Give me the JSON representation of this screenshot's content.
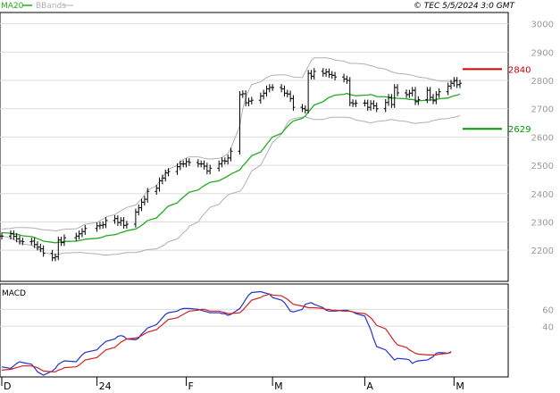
{
  "header": {
    "legend_ma": "MA20",
    "legend_bands": "BBands",
    "copyright": "© TEC 5/5/2024 3:0 GMT"
  },
  "colors": {
    "price_bar": "#000000",
    "ma20": "#22aa22",
    "bbands": "#b0b0b0",
    "resistance": "#cc0000",
    "support": "#009900",
    "macd": "#2233cc",
    "signal": "#cc2222",
    "grid": "#dddddd"
  },
  "chart_data": [
    {
      "type": "ohlc",
      "x": [
        "2023-12-01",
        "2023-12-04",
        "2023-12-05",
        "2023-12-06",
        "2023-12-07",
        "2023-12-08",
        "2023-12-11",
        "2023-12-12",
        "2023-12-13",
        "2023-12-14",
        "2023-12-15",
        "2023-12-18",
        "2023-12-19",
        "2023-12-20",
        "2023-12-21",
        "2023-12-22",
        "2023-12-26",
        "2023-12-27",
        "2023-12-28",
        "2023-12-29",
        "2024-01-02",
        "2024-01-03",
        "2024-01-04",
        "2024-01-05",
        "2024-01-08",
        "2024-01-09",
        "2024-01-10",
        "2024-01-11",
        "2024-01-12",
        "2024-01-15",
        "2024-01-16",
        "2024-01-17",
        "2024-01-18",
        "2024-01-19",
        "2024-01-22",
        "2024-01-23",
        "2024-01-24",
        "2024-01-25",
        "2024-01-26",
        "2024-01-29",
        "2024-01-30",
        "2024-01-31",
        "2024-02-01",
        "2024-02-02",
        "2024-02-05",
        "2024-02-06",
        "2024-02-07",
        "2024-02-08",
        "2024-02-09",
        "2024-02-12",
        "2024-02-13",
        "2024-02-14",
        "2024-02-15",
        "2024-02-16",
        "2024-02-19",
        "2024-02-20",
        "2024-02-21",
        "2024-02-22",
        "2024-02-23",
        "2024-02-26",
        "2024-02-27",
        "2024-02-28",
        "2024-02-29",
        "2024-03-01",
        "2024-03-04",
        "2024-03-05",
        "2024-03-06",
        "2024-03-07",
        "2024-03-08",
        "2024-03-11",
        "2024-03-12",
        "2024-03-13",
        "2024-03-14",
        "2024-03-15",
        "2024-03-18",
        "2024-03-19",
        "2024-03-20",
        "2024-03-21",
        "2024-03-22",
        "2024-03-25",
        "2024-03-26",
        "2024-03-27",
        "2024-03-28",
        "2024-03-29",
        "2024-04-01",
        "2024-04-02",
        "2024-04-03",
        "2024-04-04",
        "2024-04-05",
        "2024-04-08",
        "2024-04-09",
        "2024-04-10",
        "2024-04-11",
        "2024-04-12",
        "2024-04-15",
        "2024-04-16",
        "2024-04-17",
        "2024-04-18",
        "2024-04-19",
        "2024-04-22",
        "2024-04-23",
        "2024-04-24",
        "2024-04-25",
        "2024-04-26",
        "2024-04-29",
        "2024-04-30",
        "2024-05-01",
        "2024-05-02",
        "2024-05-03"
      ],
      "close": [
        2250,
        2258,
        2249,
        2240,
        2232,
        2230,
        2232,
        2220,
        2211,
        2205,
        2189,
        2173,
        2177,
        2236,
        2227,
        2244,
        2250,
        2258,
        2266,
        2277,
        2286,
        2288,
        2290,
        2305,
        2312,
        2298,
        2305,
        2288,
        2292,
        2335,
        2350,
        2370,
        2380,
        2408,
        2419,
        2445,
        2455,
        2473,
        2478,
        2495,
        2505,
        2505,
        2513,
        2510,
        2505,
        2505,
        2497,
        2480,
        2490,
        2505,
        2516,
        2515,
        2526,
        2550,
        2750,
        2753,
        2721,
        2727,
        2730,
        2745,
        2755,
        2770,
        2775,
        2775,
        2770,
        2755,
        2752,
        2736,
        2705,
        2700,
        2695,
        2825,
        2815,
        2832,
        2825,
        2830,
        2821,
        2818,
        2812,
        2805,
        2800,
        2721,
        2718,
        2720,
        2720,
        2705,
        2718,
        2710,
        2700,
        2722,
        2740,
        2715,
        2775,
        2756,
        2750,
        2755,
        2765,
        2725,
        2732,
        2765,
        2740,
        2728,
        2750,
        2760,
        2780,
        2790,
        2800,
        2785,
        2790
      ],
      "ylim": [
        2090,
        3040
      ],
      "y_ticks": [
        "3000",
        "2900",
        "2800",
        "2700",
        "2600",
        "2500",
        "2400",
        "2300",
        "2200"
      ],
      "x_ticks": [
        "D",
        "24",
        "F",
        "M",
        "A",
        "M"
      ],
      "series": [
        {
          "name": "MA20",
          "values": [
            2262,
            2260,
            2258,
            2256,
            2254,
            2251,
            2248,
            2245,
            2241,
            2237,
            2232,
            2228,
            2226,
            2228,
            2229,
            2231,
            2232,
            2234,
            2236,
            2239,
            2242,
            2244,
            2247,
            2251,
            2255,
            2258,
            2262,
            2265,
            2269,
            2275,
            2281,
            2288,
            2296,
            2305,
            2314,
            2325,
            2335,
            2346,
            2356,
            2367,
            2378,
            2387,
            2396,
            2405,
            2413,
            2421,
            2428,
            2434,
            2440,
            2445,
            2451,
            2456,
            2462,
            2469,
            2484,
            2498,
            2509,
            2522,
            2534,
            2547,
            2560,
            2574,
            2587,
            2600,
            2613,
            2625,
            2637,
            2648,
            2657,
            2666,
            2674,
            2688,
            2700,
            2713,
            2725,
            2733,
            2740,
            2744,
            2748,
            2751,
            2754,
            2750,
            2748,
            2746,
            2748,
            2748,
            2750,
            2747,
            2743,
            2742,
            2740,
            2737,
            2738,
            2737,
            2735,
            2733,
            2733,
            2730,
            2728,
            2730,
            2731,
            2731,
            2733,
            2735,
            2738,
            2742,
            2746,
            2748,
            2752
          ]
        },
        {
          "name": "BB-upper",
          "values": [
            2275,
            2277,
            2279,
            2280,
            2280,
            2280,
            2279,
            2278,
            2276,
            2274,
            2272,
            2270,
            2268,
            2270,
            2272,
            2274,
            2276,
            2280,
            2286,
            2292,
            2298,
            2304,
            2310,
            2318,
            2326,
            2333,
            2339,
            2345,
            2351,
            2360,
            2370,
            2382,
            2396,
            2412,
            2428,
            2443,
            2458,
            2472,
            2486,
            2500,
            2512,
            2520,
            2526,
            2530,
            2530,
            2528,
            2525,
            2523,
            2522,
            2525,
            2528,
            2534,
            2542,
            2560,
            2640,
            2700,
            2740,
            2765,
            2785,
            2795,
            2803,
            2810,
            2815,
            2818,
            2820,
            2820,
            2818,
            2815,
            2812,
            2810,
            2830,
            2850,
            2870,
            2880,
            2880,
            2880,
            2878,
            2876,
            2872,
            2868,
            2864,
            2860,
            2860,
            2860,
            2858,
            2855,
            2852,
            2850,
            2845,
            2840,
            2835,
            2830,
            2828,
            2825,
            2822,
            2820,
            2818,
            2815,
            2812,
            2808,
            2805,
            2803,
            2800,
            2798,
            2797,
            2796,
            2796,
            2798,
            2800
          ]
        },
        {
          "name": "BB-lower",
          "values": [
            2250,
            2244,
            2238,
            2232,
            2228,
            2222,
            2218,
            2212,
            2206,
            2200,
            2192,
            2186,
            2184,
            2186,
            2188,
            2190,
            2192,
            2192,
            2192,
            2190,
            2187,
            2185,
            2183,
            2183,
            2185,
            2186,
            2188,
            2190,
            2192,
            2192,
            2194,
            2196,
            2200,
            2202,
            2205,
            2210,
            2215,
            2222,
            2230,
            2240,
            2250,
            2262,
            2270,
            2285,
            2300,
            2315,
            2328,
            2340,
            2352,
            2362,
            2375,
            2385,
            2395,
            2400,
            2408,
            2420,
            2440,
            2460,
            2480,
            2500,
            2520,
            2540,
            2560,
            2580,
            2610,
            2630,
            2650,
            2660,
            2665,
            2670,
            2672,
            2668,
            2665,
            2662,
            2662,
            2665,
            2668,
            2670,
            2670,
            2670,
            2670,
            2668,
            2665,
            2660,
            2655,
            2652,
            2650,
            2652,
            2655,
            2658,
            2660,
            2662,
            2660,
            2658,
            2655,
            2652,
            2650,
            2648,
            2650,
            2652,
            2655,
            2658,
            2660,
            2663,
            2665,
            2668,
            2670,
            2672,
            2676
          ]
        }
      ],
      "levels": [
        {
          "label": "2840",
          "value": 2840,
          "color": "#cc0000"
        },
        {
          "label": "2629",
          "value": 2629,
          "color": "#009900"
        }
      ]
    },
    {
      "type": "line",
      "title": "MACD",
      "ylim": [
        -20,
        90
      ],
      "y_ticks": [
        "60",
        "40"
      ],
      "series": [
        {
          "name": "MACD",
          "values": [
            -8,
            -10,
            -7,
            -4,
            -2,
            -3,
            -5,
            -9,
            -14,
            -16,
            -18,
            -13,
            -10,
            -5,
            -3,
            -1,
            -2,
            2,
            6,
            9,
            12,
            16,
            19,
            22,
            25,
            28,
            29,
            28,
            25,
            24,
            26,
            31,
            34,
            38,
            42,
            46,
            50,
            54,
            56,
            58,
            60,
            61,
            61,
            61,
            60,
            59,
            58,
            57,
            56,
            56,
            55,
            55,
            53,
            54,
            61,
            66,
            72,
            77,
            80,
            81,
            80,
            79,
            78,
            74,
            71,
            68,
            63,
            58,
            57,
            60,
            66,
            67,
            68,
            66,
            62,
            59,
            58,
            58,
            58,
            59,
            59,
            58,
            57,
            55,
            52,
            44,
            36,
            25,
            16,
            12,
            8,
            4,
            0,
            2,
            1,
            0,
            -4,
            -2,
            -1,
            0,
            2,
            4,
            8,
            9,
            8,
            10
          ]
        },
        {
          "name": "Signal",
          "values": [
            -12,
            -11,
            -10,
            -9,
            -8,
            -7,
            -7,
            -8,
            -9,
            -11,
            -13,
            -14,
            -14,
            -12,
            -11,
            -9,
            -8,
            -6,
            -3,
            0,
            3,
            6,
            9,
            12,
            15,
            18,
            21,
            23,
            25,
            26,
            27,
            29,
            31,
            33,
            36,
            39,
            42,
            45,
            48,
            50,
            52,
            54,
            56,
            58,
            59,
            60,
            60,
            59,
            58,
            58,
            57,
            56,
            55,
            55,
            56,
            59,
            63,
            67,
            71,
            74,
            76,
            77,
            78,
            77,
            76,
            74,
            72,
            69,
            66,
            64,
            63,
            62,
            62,
            62,
            61,
            60,
            60,
            59,
            59,
            58,
            58,
            58,
            57,
            56,
            55,
            53,
            50,
            46,
            41,
            37,
            32,
            27,
            22,
            18,
            15,
            12,
            10,
            8,
            7,
            6,
            6,
            6,
            6,
            7,
            8,
            9
          ]
        }
      ]
    }
  ]
}
